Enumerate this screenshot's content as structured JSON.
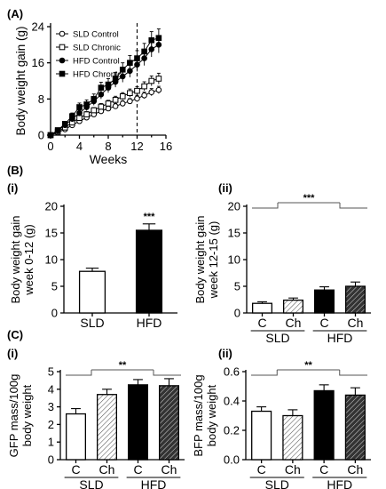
{
  "panel_labels": {
    "A": "(A)",
    "B": "(B)",
    "C": "(C)",
    "Bi": "(i)",
    "Bii": "(ii)",
    "Ci": "(i)",
    "Cii": "(ii)"
  },
  "chart_data": [
    {
      "id": "A",
      "type": "line",
      "xlabel": "Weeks",
      "ylabel": "Body weight gain (g)",
      "xlim": [
        0,
        16
      ],
      "ylim": [
        0,
        24
      ],
      "xticks": [
        0,
        4,
        8,
        12,
        16
      ],
      "yticks": [
        0,
        8,
        16,
        24
      ],
      "vline_at": 12,
      "legend_position": "top-left",
      "x": [
        0,
        1,
        2,
        3,
        4,
        5,
        6,
        7,
        8,
        9,
        10,
        11,
        12,
        13,
        14,
        15
      ],
      "series": [
        {
          "name": "SLD Control",
          "marker": "open-circle",
          "values": [
            0,
            0.6,
            1.3,
            2.2,
            3.1,
            3.9,
            4.6,
            5.3,
            5.9,
            6.4,
            7.0,
            7.5,
            8.1,
            8.8,
            9.5,
            10.0
          ],
          "errors": [
            0,
            0.2,
            0.3,
            0.4,
            0.4,
            0.5,
            0.5,
            0.5,
            0.6,
            0.6,
            0.6,
            0.6,
            0.7,
            0.7,
            0.8,
            0.8
          ]
        },
        {
          "name": "SLD Chronic",
          "marker": "open-square",
          "values": [
            0,
            0.8,
            1.7,
            2.8,
            3.8,
            4.6,
            5.5,
            6.3,
            7.0,
            7.8,
            8.6,
            9.3,
            9.8,
            10.8,
            12.0,
            12.5
          ],
          "errors": [
            0,
            0.3,
            0.4,
            0.5,
            0.5,
            0.6,
            0.6,
            0.7,
            0.7,
            0.8,
            0.8,
            0.9,
            0.9,
            1.0,
            1.1,
            1.2
          ]
        },
        {
          "name": "HFD Control",
          "marker": "filled-circle",
          "values": [
            0,
            1.0,
            2.2,
            3.6,
            4.9,
            6.2,
            7.5,
            9.0,
            10.5,
            11.8,
            13.0,
            14.2,
            15.6,
            17.0,
            19.0,
            20.0
          ],
          "errors": [
            0,
            0.3,
            0.5,
            0.6,
            0.7,
            0.8,
            0.9,
            1.0,
            1.1,
            1.2,
            1.3,
            1.4,
            1.5,
            1.6,
            1.7,
            1.8
          ]
        },
        {
          "name": "HFD Chronic",
          "marker": "filled-square",
          "values": [
            0,
            1.1,
            2.5,
            4.2,
            6.2,
            6.8,
            8.0,
            10.5,
            11.2,
            12.5,
            14.5,
            16.0,
            17.0,
            18.5,
            21.0,
            21.5
          ],
          "errors": [
            0,
            0.3,
            0.5,
            0.7,
            0.9,
            1.0,
            1.1,
            1.2,
            1.3,
            1.4,
            1.5,
            1.6,
            1.7,
            1.8,
            1.9,
            2.0
          ]
        }
      ]
    },
    {
      "id": "Bi",
      "type": "bar",
      "ylabel": "Body weight gain week 0-12 (g)",
      "ylabel_lines": [
        "Body weight gain",
        "week 0-12 (g)"
      ],
      "ylim": [
        0,
        20
      ],
      "yticks": [
        0,
        5,
        10,
        15,
        20
      ],
      "categories": [
        "SLD",
        "HFD"
      ],
      "values": [
        7.8,
        15.5
      ],
      "errors": [
        0.6,
        1.2
      ],
      "fills": [
        "open",
        "black"
      ],
      "significance": [
        {
          "over_bar": 1,
          "label": "***"
        }
      ]
    },
    {
      "id": "Bii",
      "type": "bar",
      "ylabel": "Body weight gain week 12-15 (g)",
      "ylabel_lines": [
        "Body weight gain",
        "week 12-15 (g)"
      ],
      "ylim": [
        0,
        20
      ],
      "yticks": [
        0,
        5,
        10,
        15,
        20
      ],
      "categories": [
        "C",
        "Ch",
        "C",
        "Ch"
      ],
      "groups": [
        "SLD",
        "HFD"
      ],
      "values": [
        1.8,
        2.4,
        4.3,
        5.0
      ],
      "errors": [
        0.3,
        0.4,
        0.6,
        0.8
      ],
      "fills": [
        "open",
        "hatch-light",
        "black",
        "hatch-dark"
      ],
      "significance": [
        {
          "label": "***"
        }
      ]
    },
    {
      "id": "Ci",
      "type": "bar",
      "ylabel": "GFP mass/100g body weight",
      "ylabel_lines": [
        "GFP mass/100g",
        "body weight"
      ],
      "ylim": [
        0,
        5
      ],
      "yticks": [
        0,
        1,
        2,
        3,
        4,
        5
      ],
      "categories": [
        "C",
        "Ch",
        "C",
        "Ch"
      ],
      "groups": [
        "SLD",
        "HFD"
      ],
      "values": [
        2.6,
        3.7,
        4.25,
        4.2
      ],
      "errors": [
        0.3,
        0.3,
        0.3,
        0.4
      ],
      "fills": [
        "open",
        "hatch-light",
        "black",
        "hatch-dark"
      ],
      "significance": [
        {
          "label": "**"
        }
      ]
    },
    {
      "id": "Cii",
      "type": "bar",
      "ylabel": "BFP mass/100g body weight",
      "ylabel_lines": [
        "BFP mass/100g",
        "body weight"
      ],
      "ylim": [
        0,
        0.6
      ],
      "yticks": [
        0.0,
        0.2,
        0.4,
        0.6
      ],
      "ytick_labels": [
        "0.0",
        "0.2",
        "0.4",
        "0.6"
      ],
      "categories": [
        "C",
        "Ch",
        "C",
        "Ch"
      ],
      "groups": [
        "SLD",
        "HFD"
      ],
      "values": [
        0.33,
        0.3,
        0.47,
        0.44
      ],
      "errors": [
        0.03,
        0.04,
        0.04,
        0.05
      ],
      "fills": [
        "open",
        "hatch-light",
        "black",
        "hatch-dark"
      ],
      "significance": [
        {
          "label": "**"
        }
      ]
    }
  ]
}
